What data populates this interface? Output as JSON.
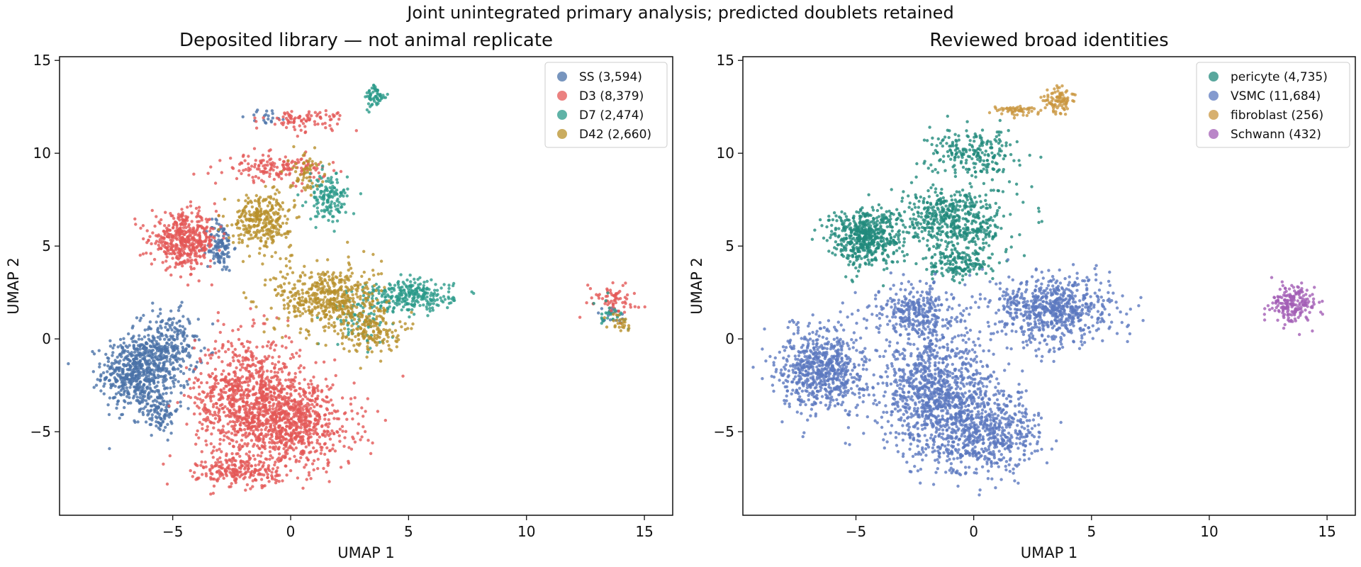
{
  "figure": {
    "suptitle": "Joint unintegrated primary analysis; predicted doublets retained"
  },
  "chart_data": [
    {
      "type": "scatter",
      "title": "Deposited library — not animal replicate",
      "xlabel": "UMAP 1",
      "ylabel": "UMAP 2",
      "xlim": [
        -9.8,
        16.2
      ],
      "ylim": [
        -9.5,
        15.2
      ],
      "xticks": [
        -5,
        0,
        5,
        10,
        15
      ],
      "yticks": [
        -5,
        0,
        5,
        10,
        15
      ],
      "xtick_labels": [
        "−5",
        "0",
        "5",
        "10",
        "15"
      ],
      "ytick_labels": [
        "−5",
        "0",
        "5",
        "10",
        "15"
      ],
      "grid": false,
      "legend_position": "top-right",
      "series": [
        {
          "name": "SS (3,594)",
          "color": "#4a72a8"
        },
        {
          "name": "D3 (8,379)",
          "color": "#e45756"
        },
        {
          "name": "D7 (2,474)",
          "color": "#2a9a8a"
        },
        {
          "name": "D42 (2,660)",
          "color": "#b8902a"
        }
      ]
    },
    {
      "type": "scatter",
      "title": "Reviewed broad identities",
      "xlabel": "UMAP 1",
      "ylabel": "UMAP 2",
      "xlim": [
        -9.8,
        16.2
      ],
      "ylim": [
        -9.5,
        15.2
      ],
      "xticks": [
        -5,
        0,
        5,
        10,
        15
      ],
      "yticks": [
        -5,
        0,
        5,
        10,
        15
      ],
      "xtick_labels": [
        "−5",
        "0",
        "5",
        "10",
        "15"
      ],
      "ytick_labels": [
        "−5",
        "0",
        "5",
        "10",
        "15"
      ],
      "grid": false,
      "legend_position": "top-right",
      "series": [
        {
          "name": "pericyte (4,735)",
          "color": "#218a7c"
        },
        {
          "name": "VSMC (11,684)",
          "color": "#5b78bf"
        },
        {
          "name": "fibroblast (256)",
          "color": "#c9963f"
        },
        {
          "name": "Schwann (432)",
          "color": "#a35eb5"
        }
      ]
    }
  ]
}
